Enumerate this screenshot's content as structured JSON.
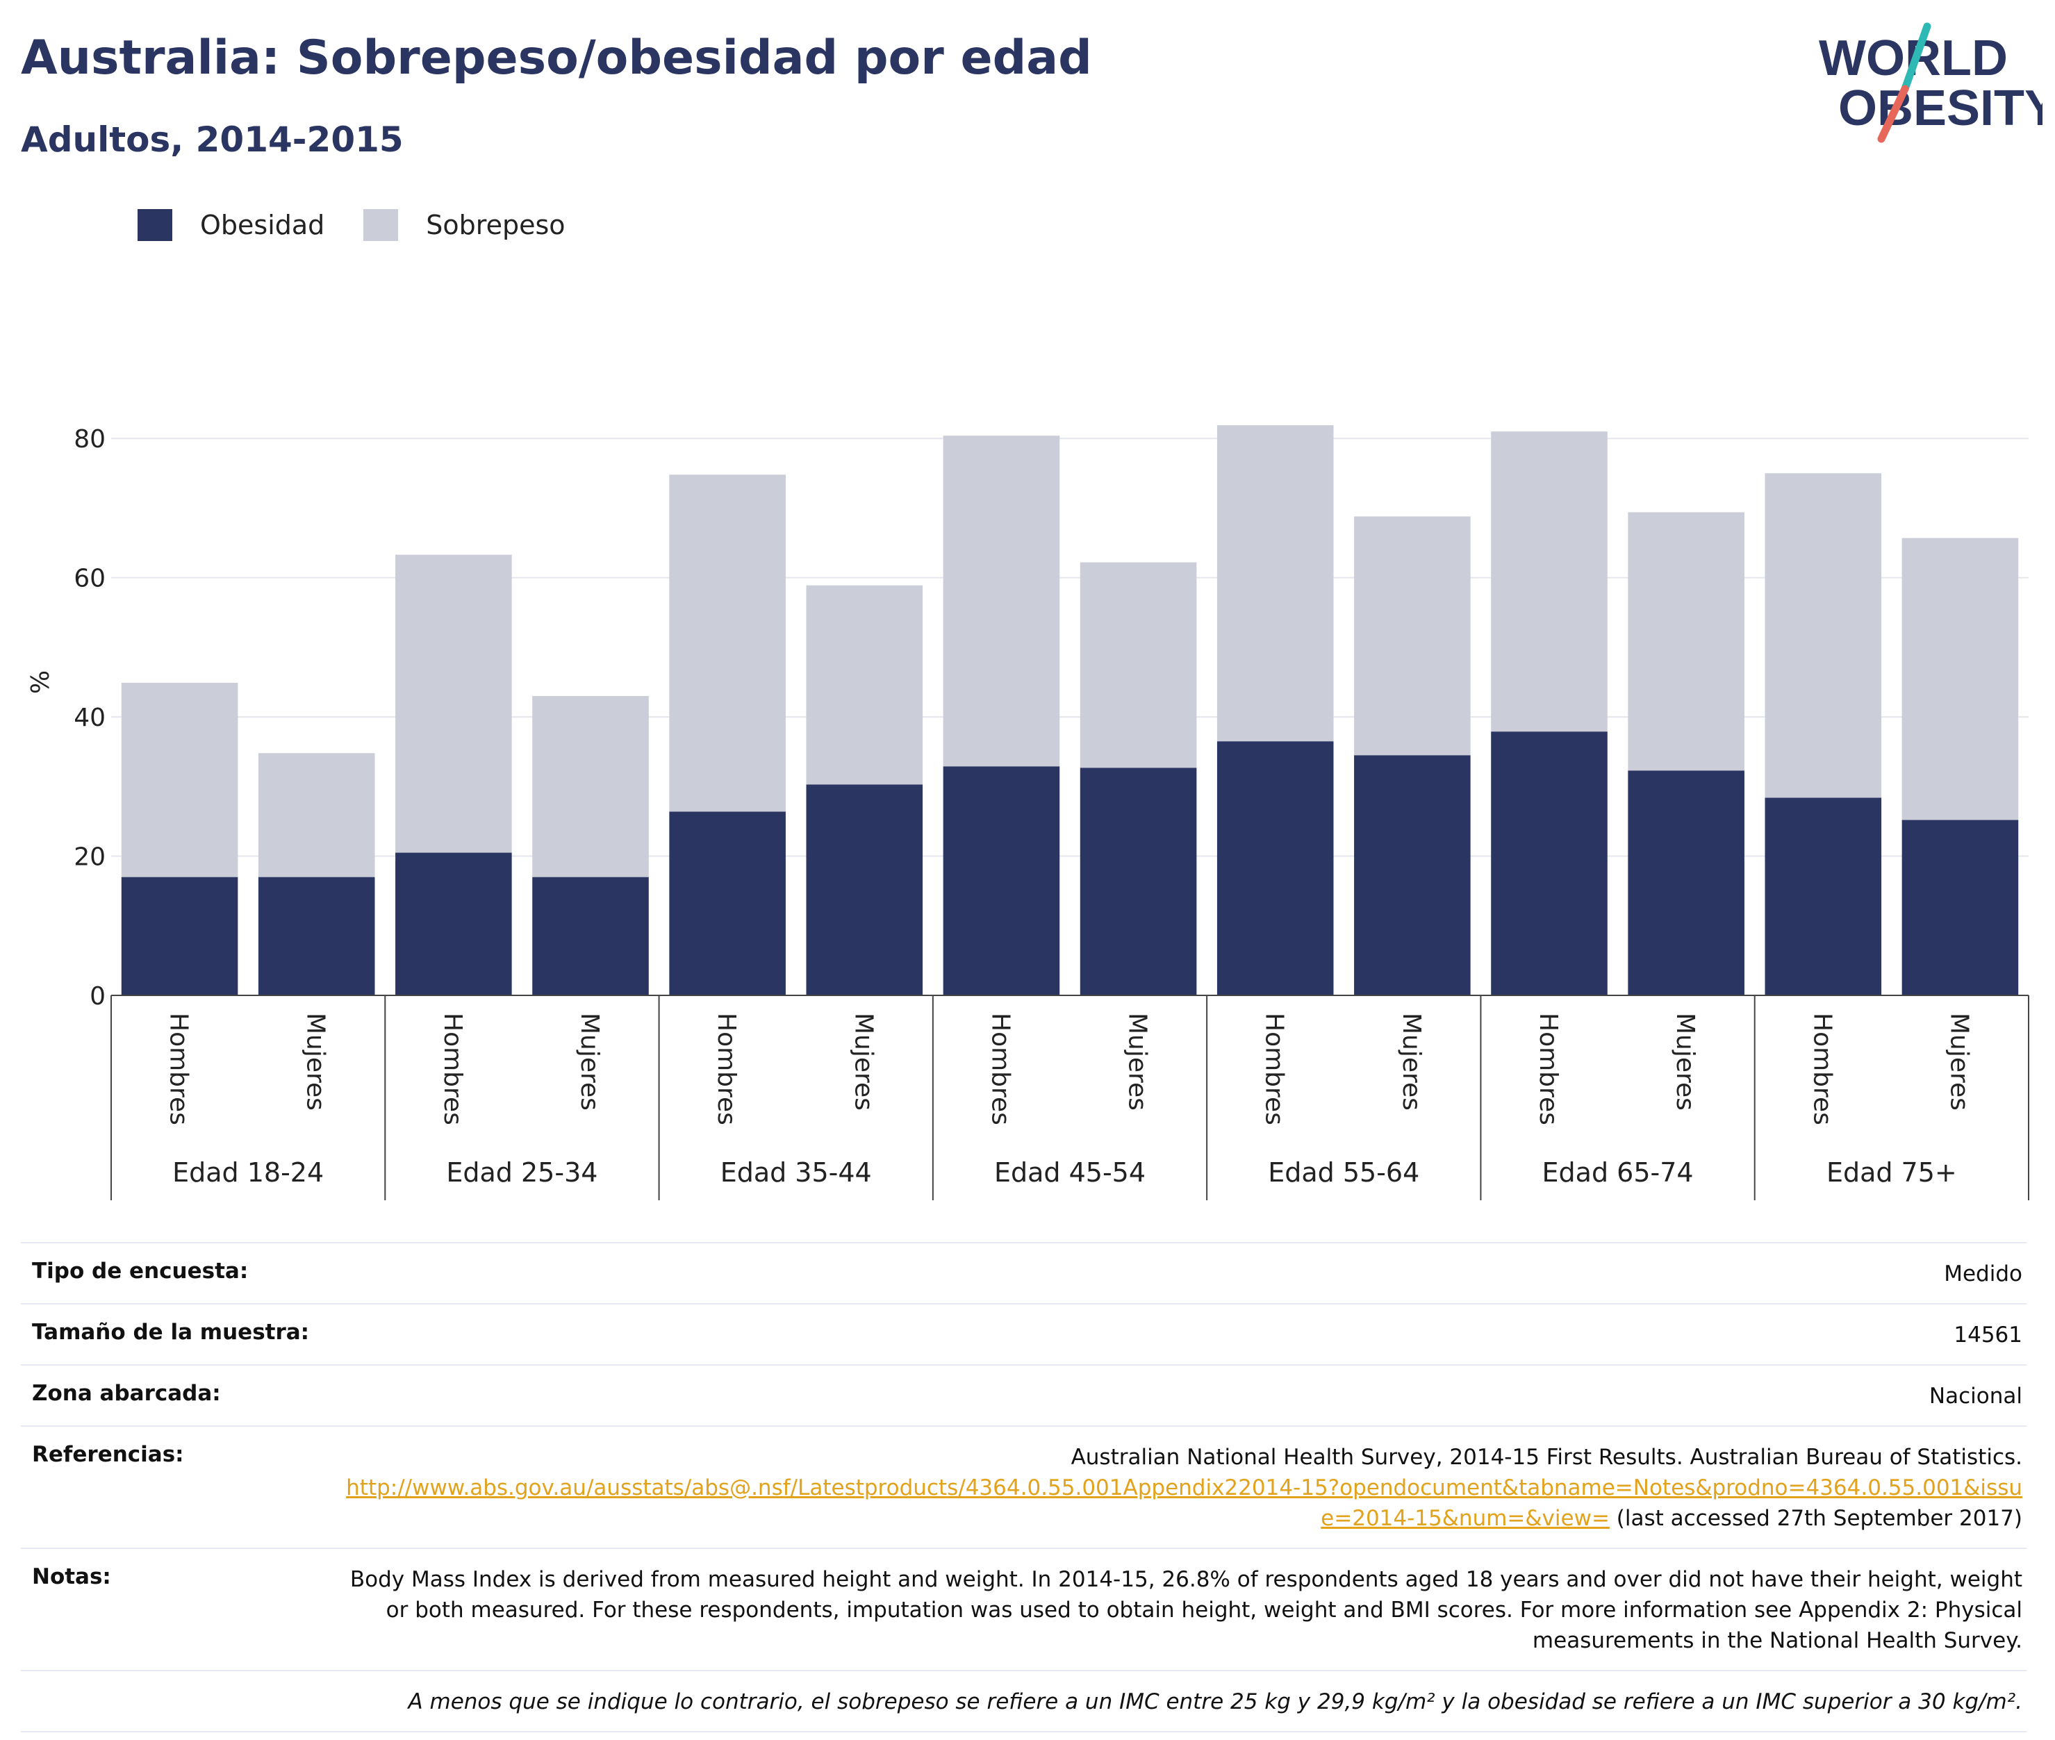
{
  "header": {
    "title": "Australia: Sobrepeso/obesidad por edad",
    "subtitle": "Adultos, 2014-2015"
  },
  "logo": {
    "line1": "WORLD",
    "line2": "OBESITY",
    "colors": {
      "navy": "#2a3562",
      "teal": "#2fb9b4",
      "coral": "#e8675b"
    }
  },
  "legend": [
    {
      "label": "Obesidad",
      "color": "#2a3562"
    },
    {
      "label": "Sobrepeso",
      "color": "#cbcdd9"
    }
  ],
  "chart_data": {
    "type": "bar",
    "stacked": true,
    "ylabel": "%",
    "ylim": [
      0,
      90
    ],
    "yticks": [
      0,
      20,
      40,
      60,
      80
    ],
    "grid": true,
    "legend_position": "top-left",
    "groups": [
      "Edad 18-24",
      "Edad 25-34",
      "Edad 35-44",
      "Edad 45-54",
      "Edad 55-64",
      "Edad 65-74",
      "Edad 75+"
    ],
    "sub_categories": [
      "Hombres",
      "Mujeres"
    ],
    "series": [
      {
        "name": "Obesidad",
        "color": "#2a3562",
        "values": [
          17.0,
          17.0,
          20.5,
          17.0,
          26.4,
          30.3,
          32.9,
          32.7,
          36.5,
          34.5,
          37.9,
          32.3,
          28.4,
          25.2
        ]
      },
      {
        "name": "Sobrepeso",
        "color": "#cbcdd9",
        "values": [
          27.9,
          17.8,
          42.8,
          26.0,
          48.4,
          28.6,
          47.5,
          29.5,
          45.4,
          34.3,
          43.1,
          37.1,
          46.6,
          40.5
        ]
      }
    ],
    "totals": [
      44.9,
      34.8,
      63.3,
      43.0,
      74.8,
      58.9,
      80.4,
      62.2,
      81.9,
      68.8,
      81.0,
      69.4,
      75.0,
      65.7
    ]
  },
  "info": {
    "rows": [
      {
        "label": "Tipo de encuesta:",
        "value": "Medido"
      },
      {
        "label": "Tamaño de la muestra:",
        "value": "14561"
      },
      {
        "label": "Zona abarcada:",
        "value": "Nacional"
      }
    ],
    "references": {
      "label": "Referencias:",
      "text": "Australian National Health Survey, 2014-15 First Results. Australian Bureau of Statistics.",
      "link": "http://www.abs.gov.au/ausstats/abs@.nsf/Latestproducts/4364.0.55.001Appendix22014-15?opendocument&tabname=Notes&prodno=4364.0.55.001&issue=2014-15&num=&view=",
      "accessed": "(last accessed 27th September 2017)"
    },
    "notes": {
      "label": "Notas:",
      "text": "Body Mass Index is derived from measured height and weight. In 2014-15, 26.8% of respondents aged 18 years and over did not have their height, weight or both measured. For these respondents, imputation was used to obtain height, weight and BMI scores. For more information see Appendix 2: Physical measurements in the National Health Survey."
    },
    "footnote": "A menos que se indique lo contrario, el sobrepeso se refiere a un IMC entre 25 kg y 29,9 kg/m² y la obesidad se refiere a un IMC superior a 30 kg/m²."
  }
}
